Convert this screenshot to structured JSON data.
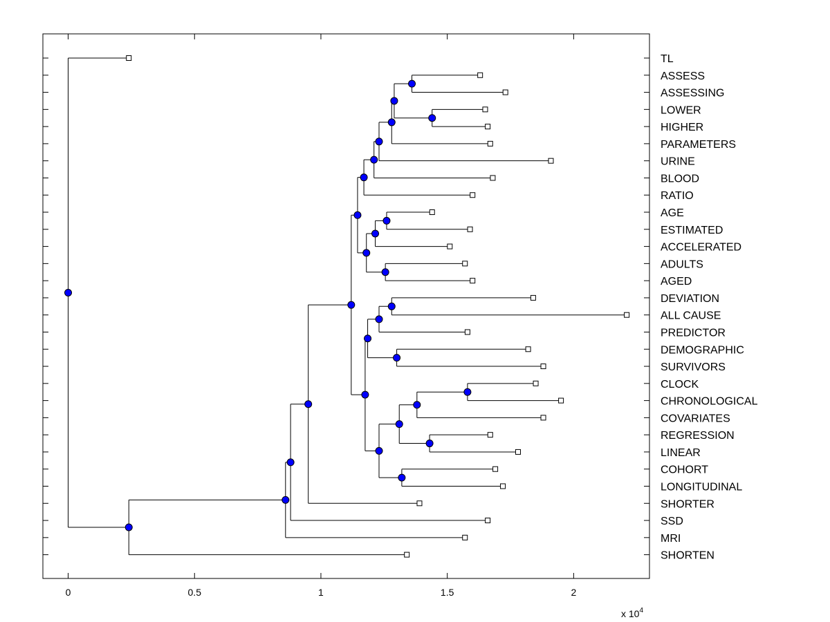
{
  "chart_data": {
    "type": "dendrogram",
    "orientation": "horizontal",
    "x_scale_note": "x 10^4",
    "xlim": [
      -1000,
      23000
    ],
    "xticks": [
      0,
      5000,
      10000,
      15000,
      20000
    ],
    "xtick_labels": [
      "0",
      "0.5",
      "1",
      "1.5",
      "2"
    ],
    "axis_multiplier": {
      "prefix": "x 10",
      "exponent": "4"
    },
    "leaves": [
      "TL",
      "ASSESS",
      "ASSESSING",
      "LOWER",
      "HIGHER",
      "PARAMETERS",
      "URINE",
      "BLOOD",
      "RATIO",
      "AGE",
      "ESTIMATED",
      "ACCELERATED",
      "ADULTS",
      "AGED",
      "DEVIATION",
      "ALL CAUSE",
      "PREDICTOR",
      "DEMOGRAPHIC",
      "SURVIVORS",
      "CLOCK",
      "CHRONOLOGICAL",
      "COVARIATES",
      "REGRESSION",
      "LINEAR",
      "COHORT",
      "LONGITUDINAL",
      "SHORTER",
      "SSD",
      "MRI",
      "SHORTEN"
    ],
    "leaf_heights": [
      2400,
      16300,
      17300,
      16500,
      16600,
      16700,
      19100,
      16800,
      16000,
      14400,
      15900,
      15100,
      15700,
      16000,
      18400,
      22100,
      15800,
      18200,
      18800,
      18500,
      19500,
      18800,
      16700,
      17800,
      16900,
      17200,
      13900,
      16600,
      15700,
      13400
    ],
    "nodes": [
      {
        "id": "n_assess",
        "height": 13600,
        "children": [
          "L:ASSESS",
          "L:ASSESSING"
        ]
      },
      {
        "id": "n_lower",
        "height": 14400,
        "children": [
          "L:LOWER",
          "L:HIGHER"
        ]
      },
      {
        "id": "n_ah",
        "height": 12900,
        "children": [
          "N:n_assess",
          "N:n_lower"
        ]
      },
      {
        "id": "n_ahp",
        "height": 12800,
        "children": [
          "N:n_ah",
          "L:PARAMETERS"
        ]
      },
      {
        "id": "n_ahpu",
        "height": 12300,
        "children": [
          "N:n_ahp",
          "L:URINE"
        ]
      },
      {
        "id": "n_ahpub",
        "height": 12100,
        "children": [
          "N:n_ahpu",
          "L:BLOOD"
        ]
      },
      {
        "id": "n_ahpubr",
        "height": 11700,
        "children": [
          "N:n_ahpub",
          "L:RATIO"
        ]
      },
      {
        "id": "n_age",
        "height": 12600,
        "children": [
          "L:AGE",
          "L:ESTIMATED"
        ]
      },
      {
        "id": "n_agea",
        "height": 12150,
        "children": [
          "N:n_age",
          "L:ACCELERATED"
        ]
      },
      {
        "id": "n_adults",
        "height": 12550,
        "children": [
          "L:ADULTS",
          "L:AGED"
        ]
      },
      {
        "id": "n_agegrp",
        "height": 11800,
        "children": [
          "N:n_agea",
          "N:n_adults"
        ]
      },
      {
        "id": "n_upper",
        "height": 11450,
        "children": [
          "N:n_ahpubr",
          "N:n_agegrp"
        ]
      },
      {
        "id": "n_dev",
        "height": 12800,
        "children": [
          "L:DEVIATION",
          "L:ALL CAUSE"
        ]
      },
      {
        "id": "n_devp",
        "height": 12300,
        "children": [
          "N:n_dev",
          "L:PREDICTOR"
        ]
      },
      {
        "id": "n_demo",
        "height": 13000,
        "children": [
          "L:DEMOGRAPHIC",
          "L:SURVIVORS"
        ]
      },
      {
        "id": "n_devd",
        "height": 11850,
        "children": [
          "N:n_devp",
          "N:n_demo"
        ]
      },
      {
        "id": "n_clock",
        "height": 15800,
        "children": [
          "L:CLOCK",
          "L:CHRONOLOGICAL"
        ]
      },
      {
        "id": "n_clockc",
        "height": 13800,
        "children": [
          "N:n_clock",
          "L:COVARIATES"
        ]
      },
      {
        "id": "n_reg",
        "height": 14300,
        "children": [
          "L:REGRESSION",
          "L:LINEAR"
        ]
      },
      {
        "id": "n_cr",
        "height": 13100,
        "children": [
          "N:n_clockc",
          "N:n_reg"
        ]
      },
      {
        "id": "n_coh",
        "height": 13200,
        "children": [
          "L:COHORT",
          "L:LONGITUDINAL"
        ]
      },
      {
        "id": "n_crc",
        "height": 12300,
        "children": [
          "N:n_cr",
          "N:n_coh"
        ]
      },
      {
        "id": "n_lower2",
        "height": 11750,
        "children": [
          "N:n_devd",
          "N:n_crc"
        ]
      },
      {
        "id": "n_mid",
        "height": 11200,
        "children": [
          "N:n_upper",
          "N:n_lower2"
        ]
      },
      {
        "id": "n_mids",
        "height": 9500,
        "children": [
          "N:n_mid",
          "L:SHORTER"
        ]
      },
      {
        "id": "n_midss",
        "height": 8800,
        "children": [
          "N:n_mids",
          "L:SSD"
        ]
      },
      {
        "id": "n_midssm",
        "height": 8600,
        "children": [
          "N:n_midss",
          "L:MRI"
        ]
      },
      {
        "id": "n_bot",
        "height": 2400,
        "children": [
          "N:n_midssm",
          "L:SHORTEN"
        ]
      },
      {
        "id": "n_root",
        "height": 0,
        "children": [
          "L:TL",
          "N:n_bot"
        ]
      }
    ],
    "node_marker_color": "#0000ff",
    "leaf_marker": "open-square",
    "line_color": "#000000"
  }
}
